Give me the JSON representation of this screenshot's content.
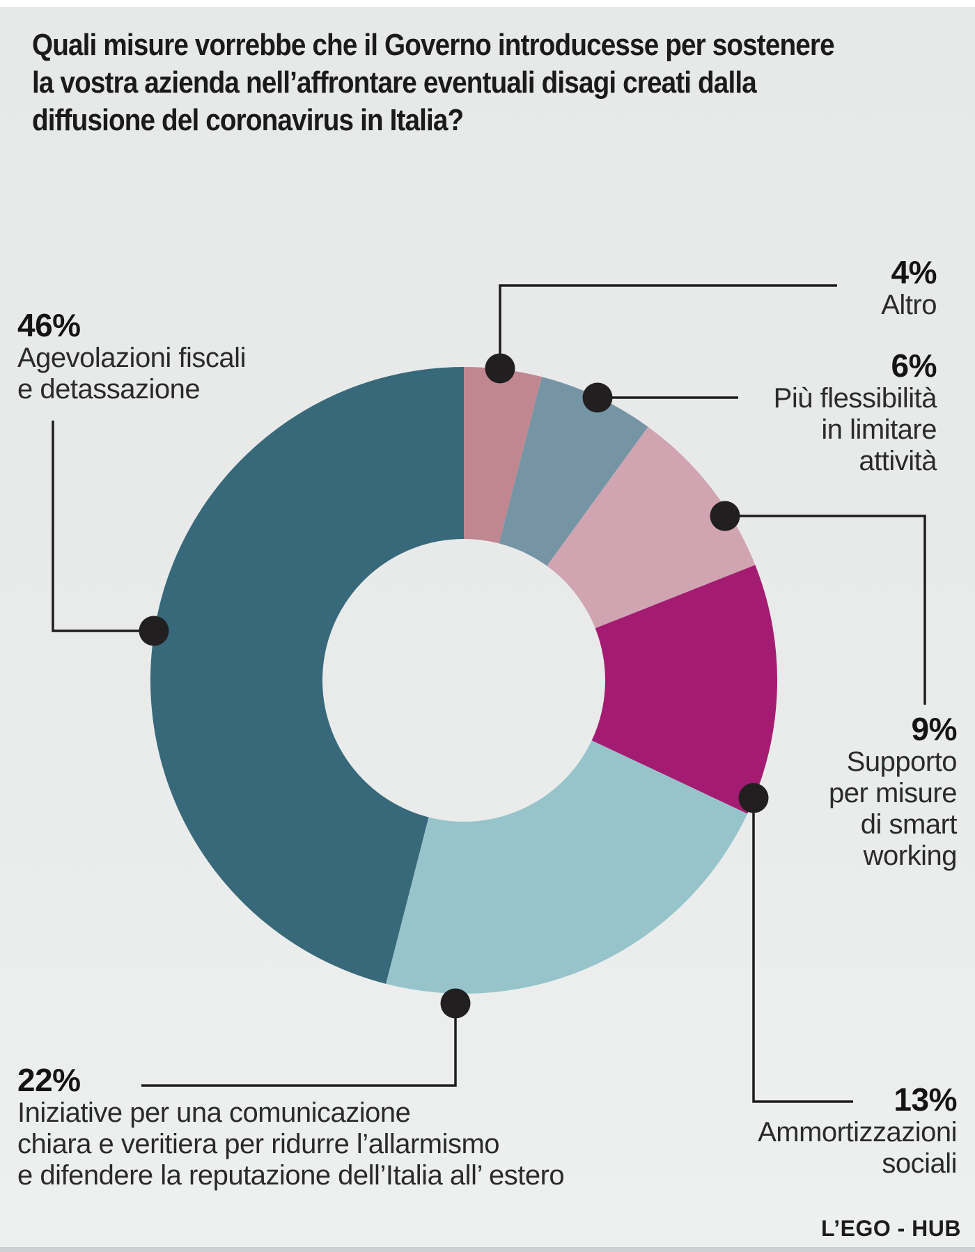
{
  "title": {
    "lines": [
      "Quali misure vorrebbe che il Governo introducesse per sostenere",
      "la vostra azienda nell’affrontare eventuali disagi creati dalla",
      "diffusione del coronavirus in Italia?"
    ]
  },
  "chart_data": {
    "type": "pie",
    "subtype": "donut",
    "title": "Quali misure vorrebbe che il Governo introducesse per sostenere la vostra azienda nell’affrontare eventuali disagi creati dalla diffusione del coronavirus in Italia?",
    "unit": "%",
    "direction": "clockwise",
    "start_angle_deg": 0,
    "hole_ratio": 0.45,
    "grid": false,
    "legend_position": "callouts",
    "dot_color": "#221f20",
    "line_color": "#1d1d1b",
    "background_color": "#e9ebeb",
    "slices": [
      {
        "label": "Altro",
        "value": 4,
        "color": "#c18791"
      },
      {
        "label": "Più flessibilità in limitare attività",
        "value": 6,
        "color": "#7695a4"
      },
      {
        "label": "Supporto per misure di smart working",
        "value": 9,
        "color": "#d0a5b1"
      },
      {
        "label": "Ammortizzazioni sociali",
        "value": 13,
        "color": "#a31c71"
      },
      {
        "label": "Iniziative per una comunicazione chiara e veritiera per ridurre l’allarmismo e difendere la reputazione dell’Italia all’ estero",
        "value": 22,
        "color": "#97c4cb"
      },
      {
        "label": "Agevolazioni fiscali e detassazione",
        "value": 46,
        "color": "#38697a"
      }
    ]
  },
  "callouts": [
    {
      "pct": "4%",
      "lines": [
        "Altro"
      ]
    },
    {
      "pct": "6%",
      "lines": [
        "Più flessibilità",
        "in limitare",
        "attività"
      ]
    },
    {
      "pct": "9%",
      "lines": [
        "Supporto",
        "per misure",
        "di smart",
        "working"
      ]
    },
    {
      "pct": "13%",
      "lines": [
        "Ammortizzazioni",
        "sociali"
      ]
    },
    {
      "pct": "22%",
      "lines": [
        "Iniziative per una comunicazione",
        "chiara e veritiera per ridurre l’allarmismo",
        "e difendere la reputazione dell’Italia all’ estero"
      ]
    },
    {
      "pct": "46%",
      "lines": [
        "Agevolazioni fiscali",
        "e detassazione"
      ]
    }
  ],
  "footer": {
    "credit": "L’EGO - HUB"
  }
}
